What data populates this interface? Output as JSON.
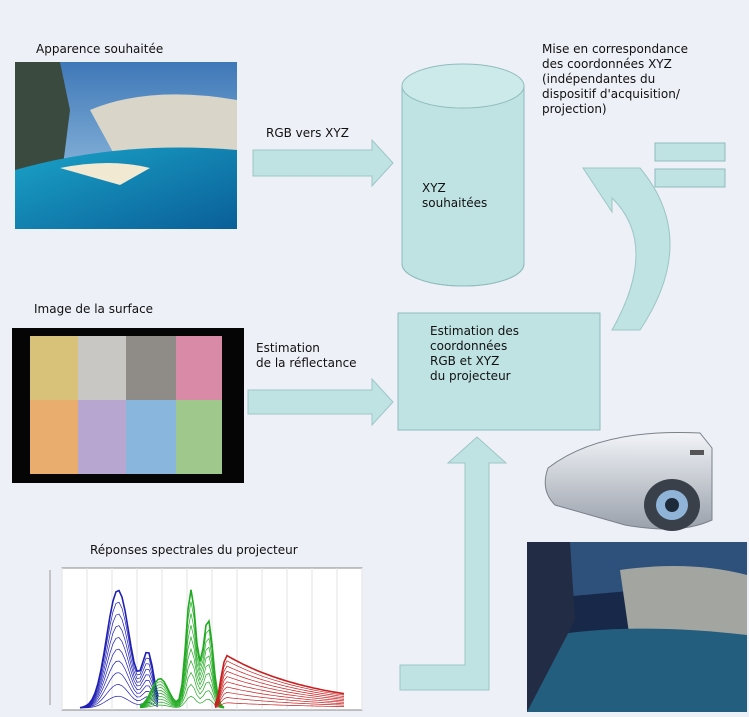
{
  "labels": {
    "desired_appearance": "Apparence souhaitée",
    "rgb_to_xyz": "RGB vers XYZ",
    "xyz_desired": "XYZ\nsouhaitées",
    "mapping": "Mise en correspondance\ndes coordonnées XYZ\n(indépendantes du\ndispositif d'acquisition/\nprojection)",
    "surface_image": "Image de la surface",
    "reflectance_estimation": "Estimation\nde la réflectance",
    "projector_coords_estimation": "Estimation des\ncoordonnées\nRGB et XYZ\ndu projecteur",
    "spectral_responses": "Réponses spectrales du projecteur"
  },
  "icons": {
    "arrow": "block-arrow-icon",
    "database": "cylinder-database-icon",
    "projector": "projector-icon",
    "mapping": "curved-arrow-icon"
  },
  "colors": {
    "background": "#eef0f7",
    "shape_fill": "#bfe2e2",
    "shape_stroke": "#8fbcbc",
    "series_blue": "#1f1fb4",
    "series_green": "#22aa22",
    "series_red": "#c82020"
  },
  "color_chart": {
    "patches": [
      "#d8c27a",
      "#c9c7c3",
      "#8f8b87",
      "#d98aa6",
      "#e9ad6e",
      "#b7a6cf",
      "#89b6dc",
      "#9fc98c"
    ]
  }
}
